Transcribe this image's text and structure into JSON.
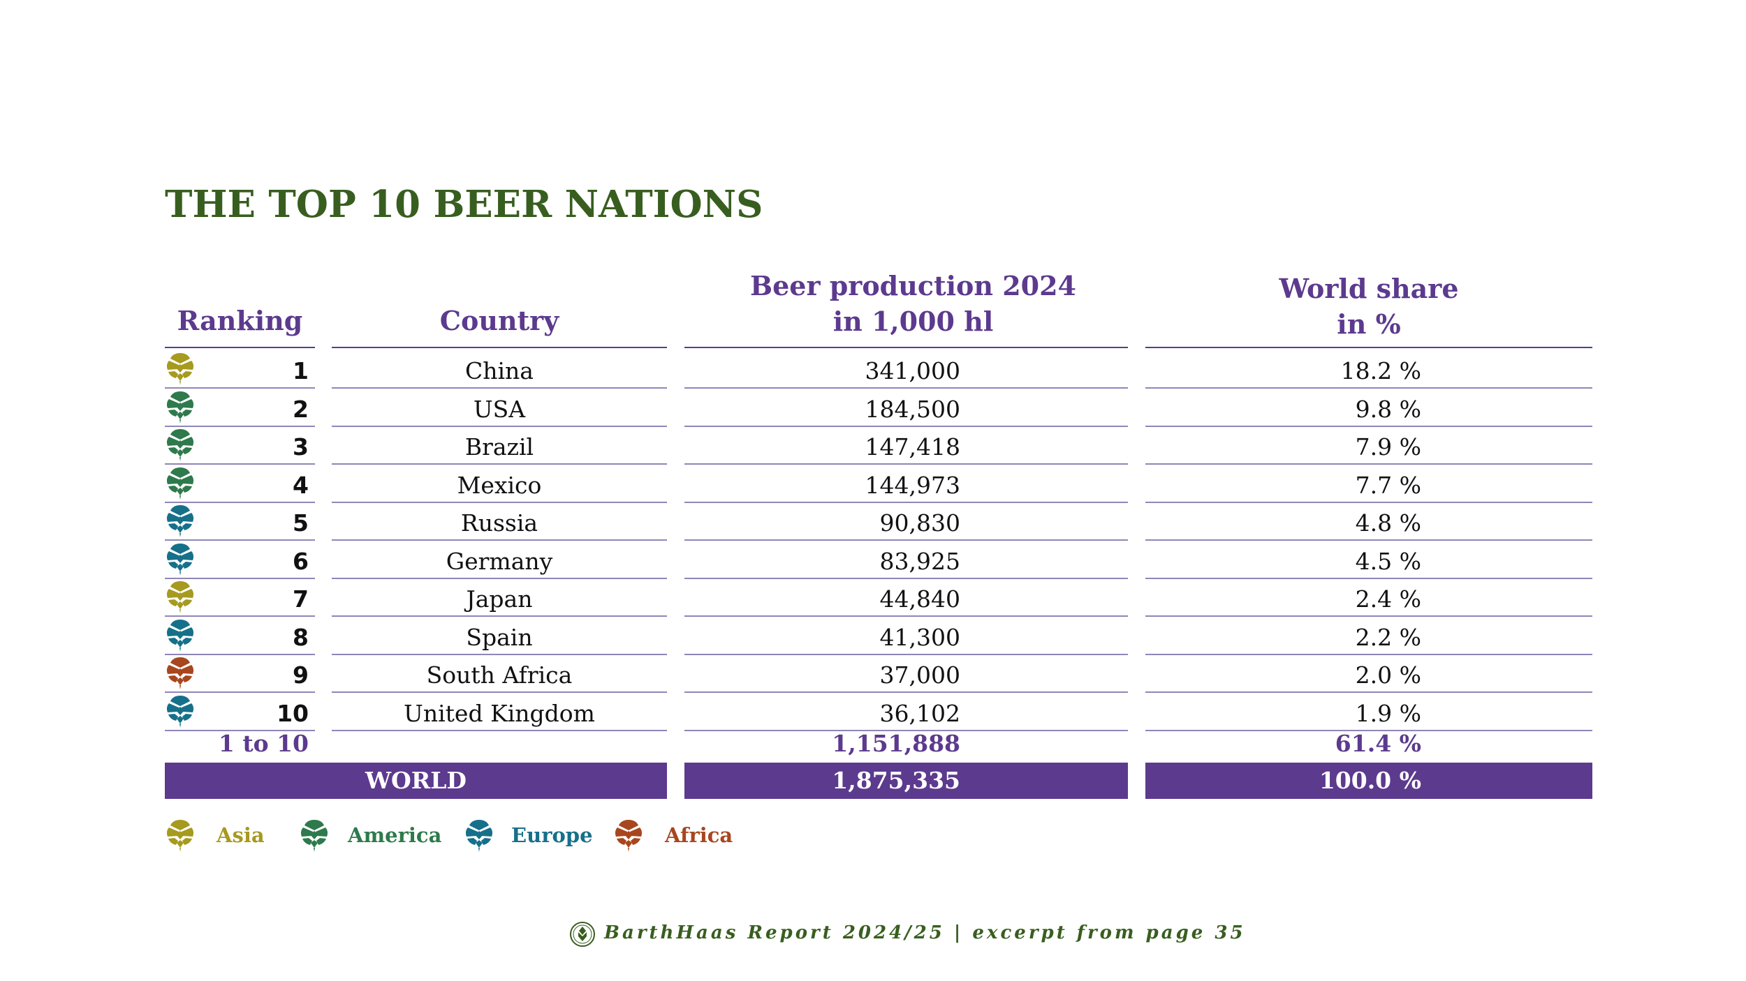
{
  "title": "THE TOP 10 BEER NATIONS",
  "headers": {
    "ranking": "Ranking",
    "country": "Country",
    "production_line1": "Beer production 2024",
    "production_line2": "in 1,000 hl",
    "share_line1": "World share",
    "share_line2": "in %"
  },
  "rows": [
    {
      "rank": "1",
      "country": "China",
      "production": "341,000",
      "share": "18.2 %",
      "region": "asia"
    },
    {
      "rank": "2",
      "country": "USA",
      "production": "184,500",
      "share": "9.8 %",
      "region": "america"
    },
    {
      "rank": "3",
      "country": "Brazil",
      "production": "147,418",
      "share": "7.9 %",
      "region": "america"
    },
    {
      "rank": "4",
      "country": "Mexico",
      "production": "144,973",
      "share": "7.7 %",
      "region": "america"
    },
    {
      "rank": "5",
      "country": "Russia",
      "production": "90,830",
      "share": "4.8 %",
      "region": "europe"
    },
    {
      "rank": "6",
      "country": "Germany",
      "production": "83,925",
      "share": "4.5 %",
      "region": "europe"
    },
    {
      "rank": "7",
      "country": "Japan",
      "production": "44,840",
      "share": "2.4 %",
      "region": "asia"
    },
    {
      "rank": "8",
      "country": "Spain",
      "production": "41,300",
      "share": "2.2 %",
      "region": "europe"
    },
    {
      "rank": "9",
      "country": "South Africa",
      "production": "37,000",
      "share": "2.0 %",
      "region": "africa"
    },
    {
      "rank": "10",
      "country": "United Kingdom",
      "production": "36,102",
      "share": "1.9 %",
      "region": "europe"
    }
  ],
  "subtotal": {
    "label": "1 to 10",
    "production": "1,151,888",
    "share": "61.4 %"
  },
  "world": {
    "label": "WORLD",
    "production": "1,875,335",
    "share": "100.0 %"
  },
  "legend": [
    {
      "key": "asia",
      "label": "Asia",
      "icon": "hop-cone-icon"
    },
    {
      "key": "america",
      "label": "America",
      "icon": "hop-cone-icon"
    },
    {
      "key": "europe",
      "label": "Europe",
      "icon": "hop-cone-icon"
    },
    {
      "key": "africa",
      "label": "Africa",
      "icon": "hop-cone-icon"
    }
  ],
  "colors": {
    "asia": "#a69a1f",
    "america": "#2e7a4c",
    "europe": "#16708a",
    "africa": "#a8461e",
    "title": "#385e1f",
    "accent": "#5c3a8e"
  },
  "footer": "BarthHaas Report 2024/25 | excerpt from page 35"
}
